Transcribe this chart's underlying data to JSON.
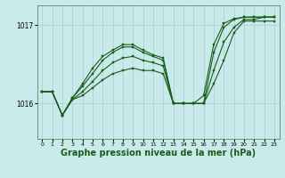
{
  "bg_color": "#c8eaea",
  "grid_color": "#aacccc",
  "line_color": "#1a5c1a",
  "marker_color": "#1a5c1a",
  "xlabel": "Graphe pression niveau de la mer (hPa)",
  "xlabel_fontsize": 7.0,
  "yticks": [
    1016,
    1017
  ],
  "xticks": [
    0,
    1,
    2,
    3,
    4,
    5,
    6,
    7,
    8,
    9,
    10,
    11,
    12,
    13,
    14,
    15,
    16,
    17,
    18,
    19,
    20,
    21,
    22,
    23
  ],
  "xlim": [
    -0.5,
    23.5
  ],
  "ylim": [
    1015.55,
    1017.25
  ],
  "series": [
    [
      1016.15,
      1016.15,
      1015.85,
      1016.05,
      1016.1,
      1016.2,
      1016.3,
      1016.38,
      1016.42,
      1016.45,
      1016.42,
      1016.42,
      1016.38,
      1016.0,
      1016.0,
      1016.0,
      1016.0,
      1016.25,
      1016.55,
      1016.9,
      1017.05,
      1017.05,
      1017.05,
      1017.05
    ],
    [
      1016.15,
      1016.15,
      1015.85,
      1016.05,
      1016.15,
      1016.28,
      1016.42,
      1016.52,
      1016.58,
      1016.6,
      1016.55,
      1016.52,
      1016.48,
      1016.0,
      1016.0,
      1016.0,
      1016.0,
      1016.42,
      1016.78,
      1016.97,
      1017.07,
      1017.07,
      1017.1,
      1017.1
    ],
    [
      1016.15,
      1016.15,
      1015.85,
      1016.07,
      1016.22,
      1016.38,
      1016.55,
      1016.65,
      1016.72,
      1016.72,
      1016.65,
      1016.6,
      1016.55,
      1016.0,
      1016.0,
      1016.0,
      1016.0,
      1016.65,
      1016.97,
      1017.07,
      1017.1,
      1017.1,
      1017.1,
      1017.1
    ],
    [
      1016.15,
      1016.15,
      1015.85,
      1016.07,
      1016.25,
      1016.45,
      1016.6,
      1016.68,
      1016.75,
      1016.75,
      1016.68,
      1016.62,
      1016.58,
      1016.0,
      1016.0,
      1016.0,
      1016.1,
      1016.75,
      1017.02,
      1017.08,
      1017.1,
      1017.1,
      1017.1,
      1017.1
    ]
  ]
}
